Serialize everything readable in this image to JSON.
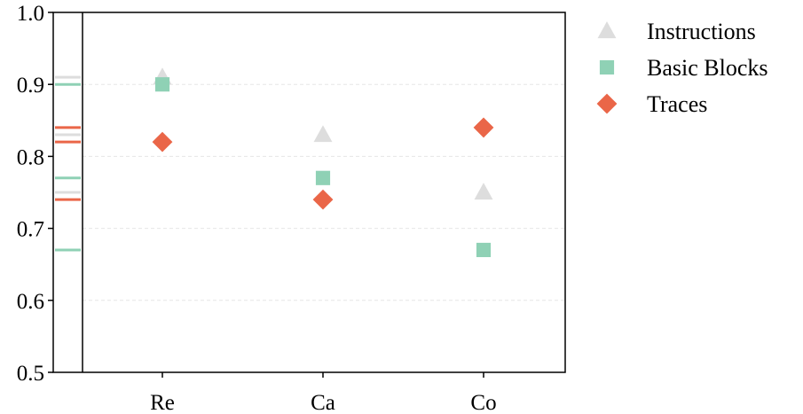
{
  "chart_data": {
    "type": "scatter",
    "title": "",
    "xlabel": "",
    "ylabel": "",
    "categories": [
      "Re",
      "Ca",
      "Co"
    ],
    "ylim": [
      0.5,
      1.0
    ],
    "yticks": [
      "0.5",
      "0.6",
      "0.7",
      "0.8",
      "0.9",
      "1.0"
    ],
    "grid": "horizontal dashed",
    "legend_position": "right",
    "series": [
      {
        "name": "Instructions",
        "marker": "triangle",
        "color": "#dddddd",
        "values": [
          0.91,
          0.83,
          0.75
        ]
      },
      {
        "name": "Basic Blocks",
        "marker": "square",
        "color": "#8fd1b5",
        "values": [
          0.9,
          0.77,
          0.67
        ]
      },
      {
        "name": "Traces",
        "marker": "diamond",
        "color": "#ea6648",
        "values": [
          0.82,
          0.74,
          0.84
        ]
      }
    ],
    "marginal_strip": "rug of all series values along y-axis"
  }
}
